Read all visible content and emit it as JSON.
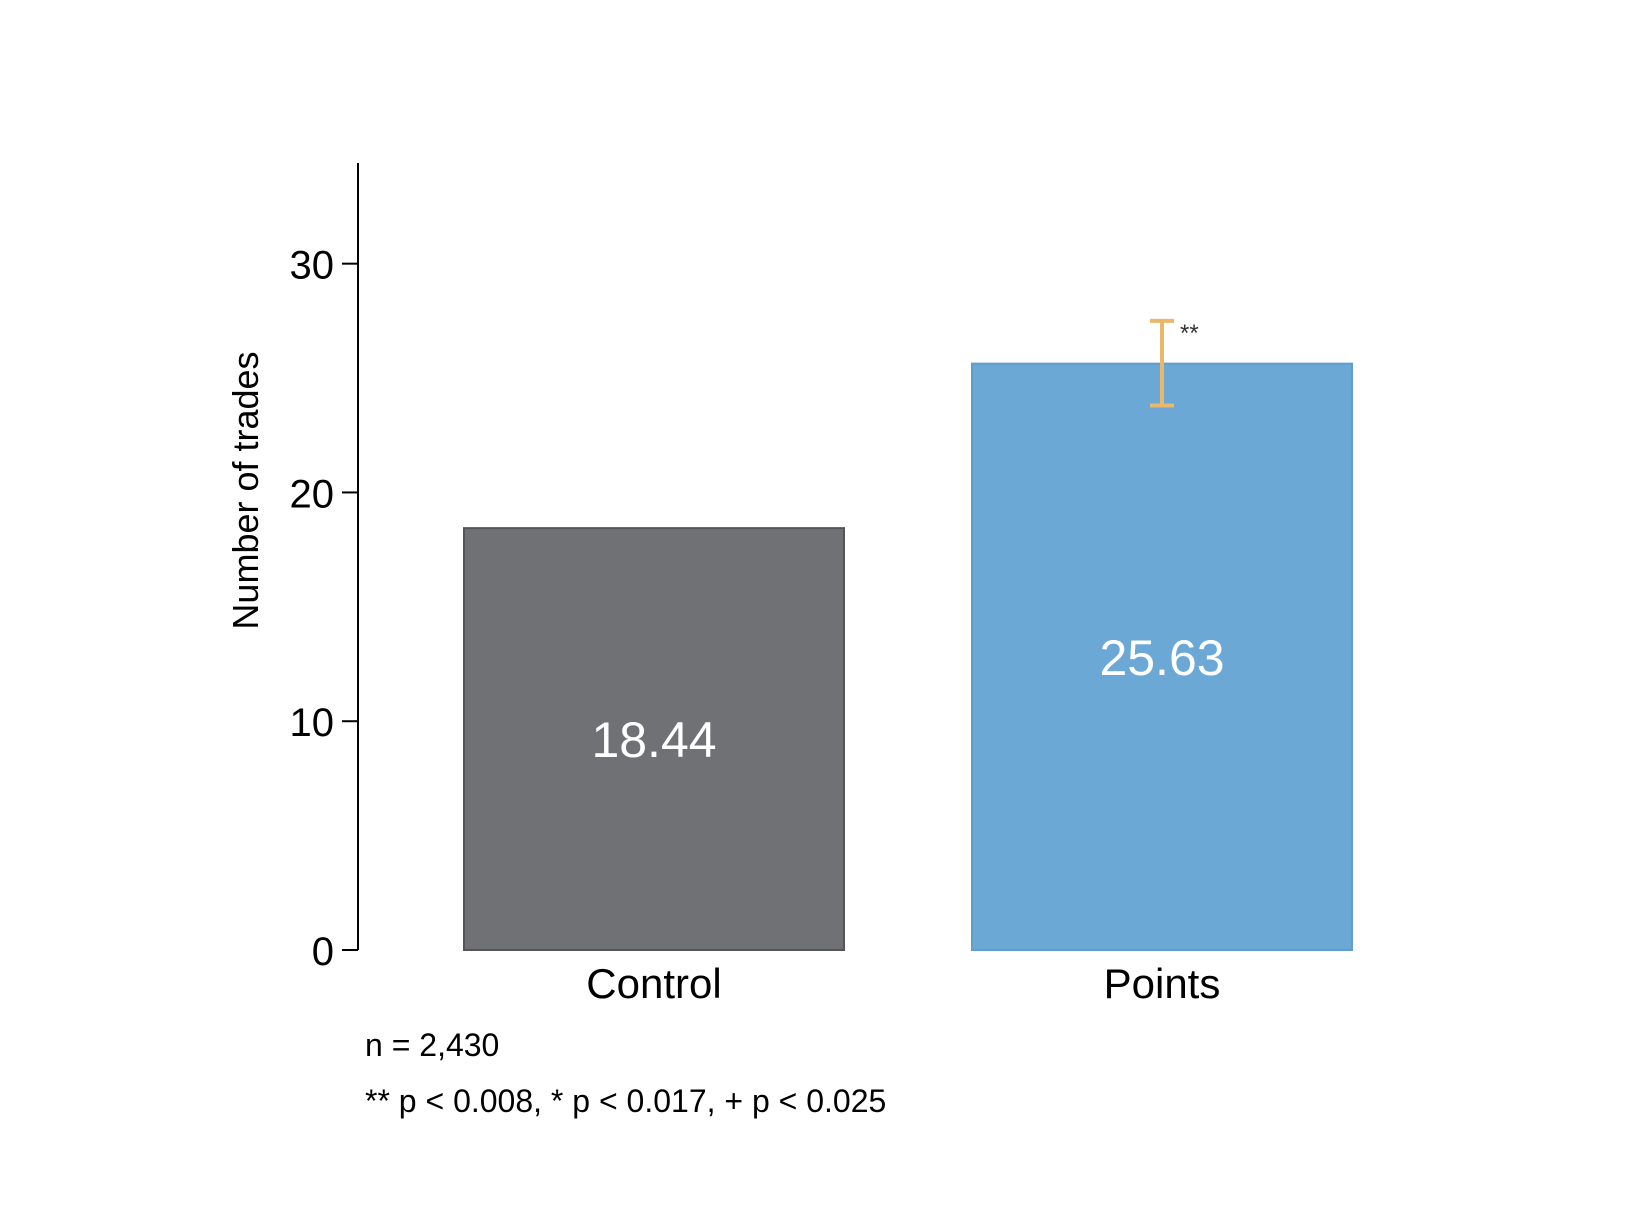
{
  "chart_data": {
    "type": "bar",
    "title": "",
    "xlabel": "",
    "ylabel": "Number of trades",
    "ylim": [
      0,
      34.4
    ],
    "yticks": [
      0,
      10,
      20,
      30
    ],
    "categories": [
      "Control",
      "Points"
    ],
    "values": [
      18.44,
      25.63
    ],
    "value_labels": [
      "18.44",
      "25.63"
    ],
    "bar_colors": [
      "#707174",
      "#6ba8d6"
    ],
    "error_bars": [
      null,
      {
        "low": 23.8,
        "high": 27.5,
        "color": "#e9b86a",
        "significance": "**"
      }
    ],
    "grid": false,
    "legend": "none",
    "notes": [
      "n = 2,430",
      "** p < 0.008, * p < 0.017, + p < 0.025"
    ]
  }
}
